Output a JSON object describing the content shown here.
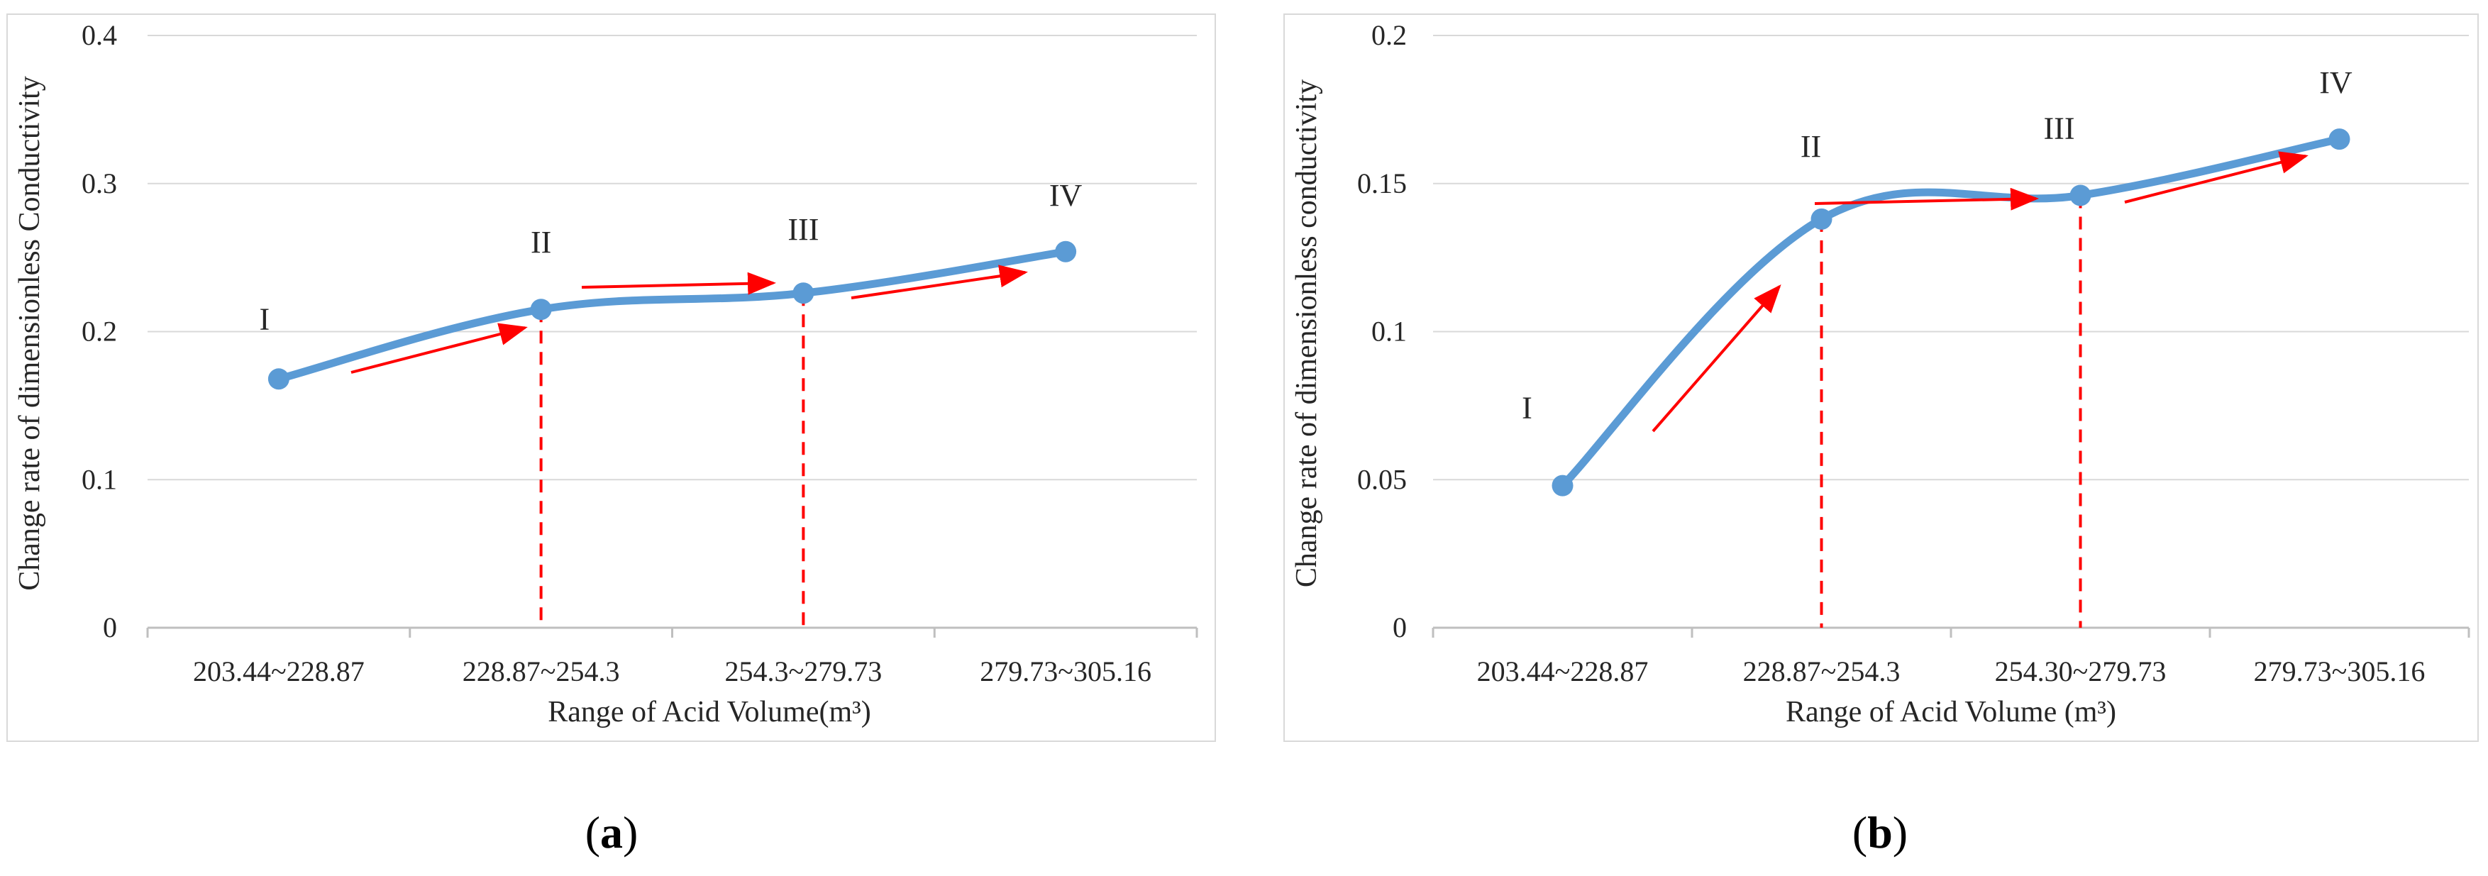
{
  "chart_data": [
    {
      "type": "line",
      "panel_label": {
        "open": "(",
        "letter": "a",
        "close": ")"
      },
      "categories": [
        "203.44~228.87",
        "228.87~254.3",
        "254.3~279.73",
        "279.73~305.16"
      ],
      "values": [
        0.168,
        0.215,
        0.226,
        0.254
      ],
      "stage_labels": [
        "I",
        "II",
        "III",
        "IV"
      ],
      "xlabel": "Range of Acid Volume(m³)",
      "ylabel": "Change rate of dimensionless Conductivity",
      "ylim": [
        0,
        0.4
      ],
      "yticks": [
        "0",
        "0.1",
        "0.2",
        "0.3",
        "0.4"
      ],
      "line_color": "#5B9BD5",
      "annotation_color": "#FF0000",
      "vertical_dashed_at_categories": [
        1,
        2
      ]
    },
    {
      "type": "line",
      "panel_label": {
        "open": "(",
        "letter": "b",
        "close": ")"
      },
      "categories": [
        "203.44~228.87",
        "228.87~254.3",
        "254.30~279.73",
        "279.73~305.16"
      ],
      "values": [
        0.048,
        0.138,
        0.146,
        0.165
      ],
      "stage_labels": [
        "I",
        "II",
        "III",
        "IV"
      ],
      "xlabel": "Range of Acid Volume (m³)",
      "ylabel": "Change rate of dimensionless conductivity",
      "ylim": [
        0,
        0.2
      ],
      "yticks": [
        "0",
        "0.05",
        "0.1",
        "0.15",
        "0.2"
      ],
      "line_color": "#5B9BD5",
      "annotation_color": "#FF0000",
      "vertical_dashed_at_categories": [
        1,
        2
      ]
    }
  ]
}
